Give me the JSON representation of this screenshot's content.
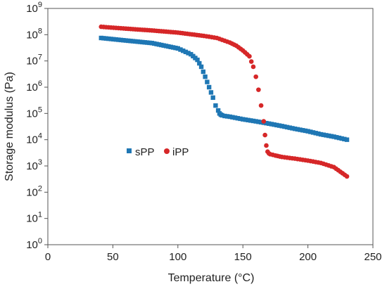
{
  "chart_data": {
    "type": "scatter",
    "title": "",
    "xlabel": "Temperature (°C)",
    "ylabel": "Storage modulus (Pa)",
    "xlim": [
      0,
      250
    ],
    "ylim_log10": [
      0,
      9
    ],
    "yscale": "log",
    "grid": false,
    "legend_placement": "center-left",
    "x_ticks": [
      "0",
      "50",
      "100",
      "150",
      "200",
      "250"
    ],
    "y_ticks": [
      {
        "base": "10",
        "exp": "0"
      },
      {
        "base": "10",
        "exp": "1"
      },
      {
        "base": "10",
        "exp": "2"
      },
      {
        "base": "10",
        "exp": "3"
      },
      {
        "base": "10",
        "exp": "4"
      },
      {
        "base": "10",
        "exp": "5"
      },
      {
        "base": "10",
        "exp": "6"
      },
      {
        "base": "10",
        "exp": "7"
      },
      {
        "base": "10",
        "exp": "8"
      },
      {
        "base": "10",
        "exp": "9"
      }
    ],
    "series": [
      {
        "name": "sPP",
        "color": "#1f77b4",
        "marker": "square",
        "x": [
          41,
          60,
          80,
          100,
          110,
          115,
          118,
          121,
          124,
          127,
          129,
          131,
          132,
          133,
          134,
          136,
          140,
          150,
          160,
          170,
          180,
          190,
          200,
          210,
          220,
          230
        ],
        "y": [
          75000000.0,
          60000000.0,
          48000000.0,
          30000000.0,
          18000000.0,
          11000000.0,
          6000000.0,
          2500000.0,
          1000000.0,
          400000.0,
          200000.0,
          130000.0,
          100000.0,
          90000.0,
          85000.0,
          80000.0,
          75000.0,
          60000.0,
          50000.0,
          41000.0,
          33000.0,
          26000.0,
          21000.0,
          16000.0,
          13000.0,
          10000.0
        ]
      },
      {
        "name": "iPP",
        "color": "#d62728",
        "marker": "circle",
        "x": [
          41,
          60,
          80,
          100,
          120,
          130,
          140,
          145,
          150,
          155,
          158,
          160,
          162,
          164,
          166,
          167,
          168,
          169,
          170,
          171,
          175,
          180,
          190,
          200,
          210,
          220,
          225,
          230
        ],
        "y": [
          200000000.0,
          170000000.0,
          145000000.0,
          120000000.0,
          90000000.0,
          75000000.0,
          50000000.0,
          38000000.0,
          25000000.0,
          15000000.0,
          6000000.0,
          2500000.0,
          800000.0,
          200000.0,
          50000.0,
          15000.0,
          6000.0,
          3500.0,
          3000.0,
          2800.0,
          2500.0,
          2200.0,
          1900.0,
          1600.0,
          1300.0,
          900.0,
          600.0,
          400.0
        ]
      }
    ]
  }
}
